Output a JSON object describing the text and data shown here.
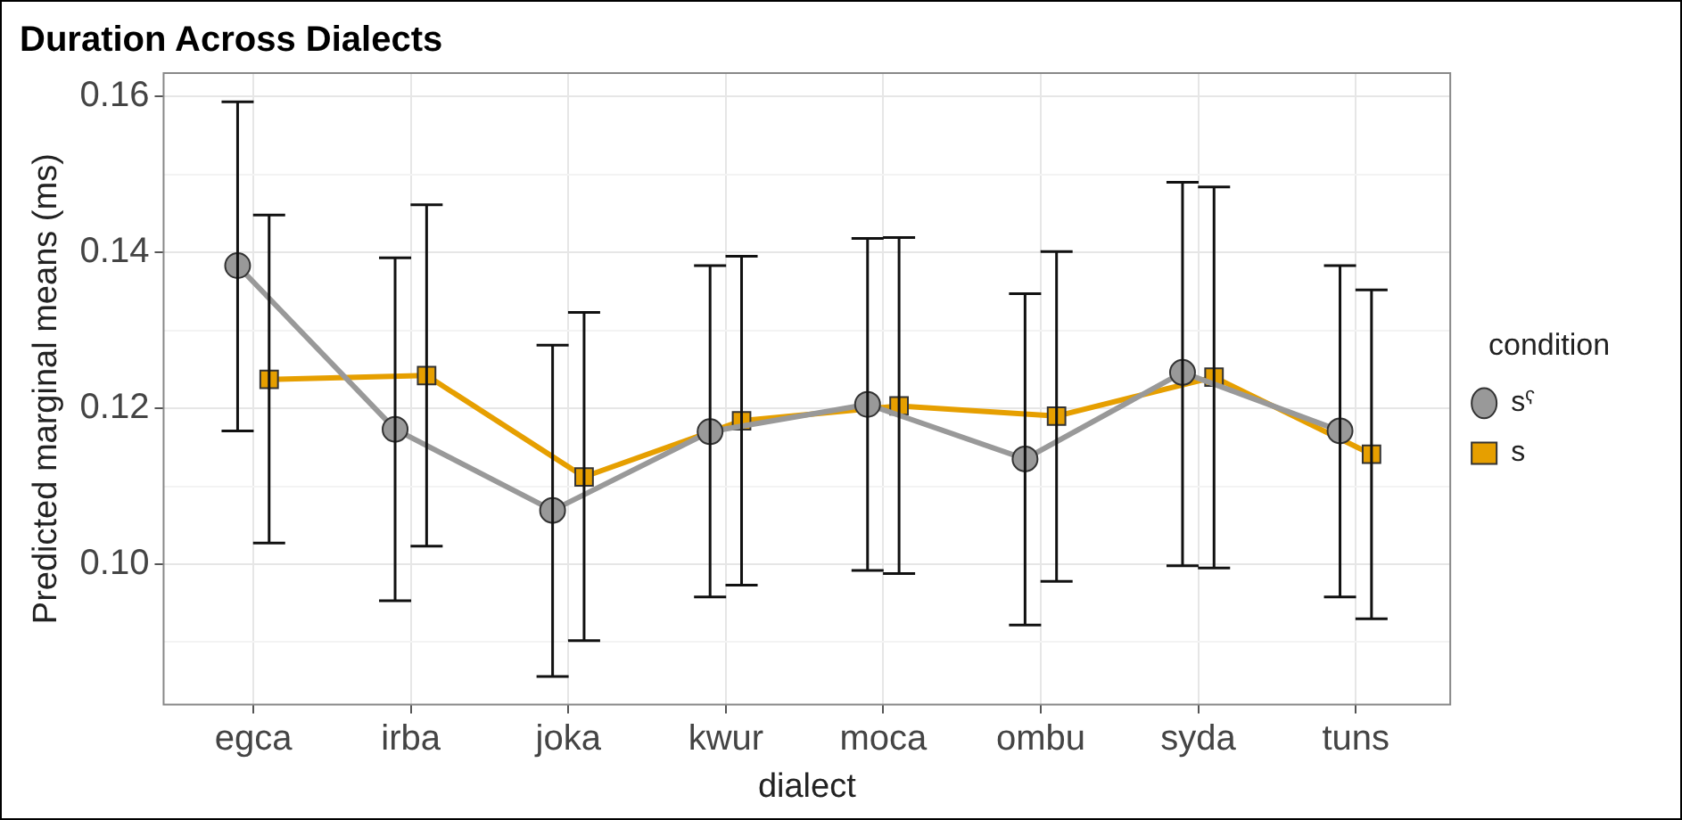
{
  "chart_data": {
    "type": "line",
    "title": "Duration Across Dialects",
    "xlabel": "dialect",
    "ylabel": "Predicted marginal means (ms)",
    "legend_title": "condition",
    "legend": "right",
    "grid": true,
    "categories": [
      "egca",
      "irba",
      "joka",
      "kwur",
      "moca",
      "ombu",
      "syda",
      "tuns"
    ],
    "ylim": [
      0.082,
      0.163
    ],
    "yticks": [
      {
        "value": 0.09,
        "label": null
      },
      {
        "value": 0.1,
        "label": "0.10"
      },
      {
        "value": 0.11,
        "label": null
      },
      {
        "value": 0.12,
        "label": "0.12"
      },
      {
        "value": 0.13,
        "label": null
      },
      {
        "value": 0.14,
        "label": "0.14"
      },
      {
        "value": 0.15,
        "label": null
      },
      {
        "value": 0.16,
        "label": "0.16"
      }
    ],
    "series": [
      {
        "name": "sˤ",
        "color": "#999999",
        "marker": "circle",
        "values": [
          0.1383,
          0.1173,
          0.1069,
          0.117,
          0.1205,
          0.1135,
          0.1246,
          0.1171
        ],
        "errors": [
          [
            0.1171,
            0.1593
          ],
          [
            0.0953,
            0.1393
          ],
          [
            0.0856,
            0.1281
          ],
          [
            0.0958,
            0.1383
          ],
          [
            0.0992,
            0.1418
          ],
          [
            0.0922,
            0.1347
          ],
          [
            0.0998,
            0.149
          ],
          [
            0.0958,
            0.1383
          ]
        ]
      },
      {
        "name": "s",
        "color": "#e69f00",
        "marker": "square",
        "values": [
          0.1237,
          0.1242,
          0.1112,
          0.1184,
          0.1203,
          0.119,
          0.124,
          0.1141
        ],
        "errors": [
          [
            0.1027,
            0.1448
          ],
          [
            0.1023,
            0.1461
          ],
          [
            0.0902,
            0.1323
          ],
          [
            0.0973,
            0.1395
          ],
          [
            0.0988,
            0.1419
          ],
          [
            0.0978,
            0.1401
          ],
          [
            0.0995,
            0.1484
          ],
          [
            0.093,
            0.1352
          ]
        ]
      }
    ]
  }
}
